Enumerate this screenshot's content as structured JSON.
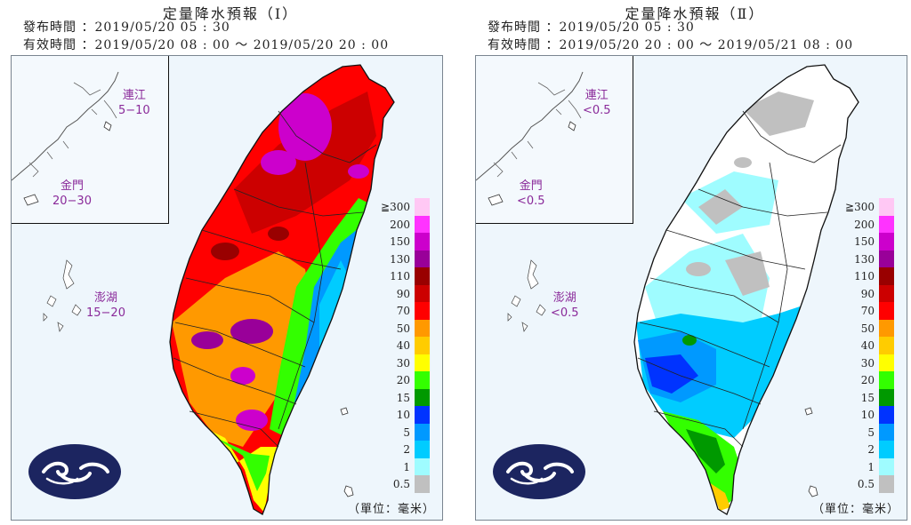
{
  "panels": [
    {
      "title": "定量降水預報（Ⅰ）",
      "issue": "發布時間 ：2019/05/20 05 : 30",
      "valid": "有效時間 ：2019/05/20 08 : 00 〜 2019/05/20 20 : 00",
      "islands": {
        "matsu": {
          "name": "連江",
          "value": "5−10"
        },
        "kinmen": {
          "name": "金門",
          "value": "20−30"
        },
        "penghu": {
          "name": "澎湖",
          "value": "15−20"
        }
      },
      "unit": "（單位：毫米）"
    },
    {
      "title": "定量降水預報（Ⅱ）",
      "issue": "發布時間 ：2019/05/20 05 : 30",
      "valid": "有效時間 ：2019/05/20 20 : 00 〜 2019/05/21 08 : 00",
      "islands": {
        "matsu": {
          "name": "連江",
          "value": "<0.5"
        },
        "kinmen": {
          "name": "金門",
          "value": "<0.5"
        },
        "penghu": {
          "name": "澎湖",
          "value": "<0.5"
        }
      },
      "unit": "（單位：毫米）"
    }
  ],
  "legend": [
    {
      "label": "≧300",
      "color": "#ffc8f4"
    },
    {
      "label": "200",
      "color": "#ff33ff"
    },
    {
      "label": "150",
      "color": "#cc00cc"
    },
    {
      "label": "130",
      "color": "#990099"
    },
    {
      "label": "110",
      "color": "#990000"
    },
    {
      "label": "90",
      "color": "#cc0000"
    },
    {
      "label": "70",
      "color": "#ff0000"
    },
    {
      "label": "50",
      "color": "#ff9900"
    },
    {
      "label": "40",
      "color": "#ffcc00"
    },
    {
      "label": "30",
      "color": "#ffff00"
    },
    {
      "label": "20",
      "color": "#33ff00"
    },
    {
      "label": "15",
      "color": "#009900"
    },
    {
      "label": "10",
      "color": "#0033ff"
    },
    {
      "label": "5",
      "color": "#0099ff"
    },
    {
      "label": "2",
      "color": "#00ccff"
    },
    {
      "label": "1",
      "color": "#9ffcff"
    },
    {
      "label": "0.5",
      "color": "#c0c0c0"
    }
  ],
  "colors": {
    "sea": "#eef6fc",
    "border": "#111111",
    "island_label": "#8a2a9a",
    "logo": "#1c2560"
  },
  "icons": [
    "cwb-logo-icon"
  ]
}
